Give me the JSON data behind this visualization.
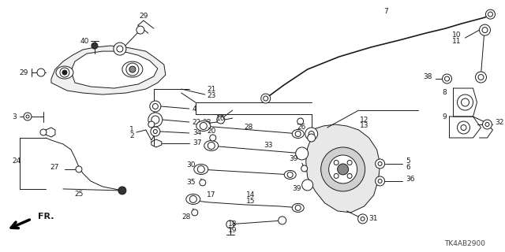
{
  "background_color": "#ffffff",
  "diagram_code": "TK4AB2900",
  "line_color": "#1a1a1a",
  "lw": 0.7,
  "font_size": 6.5
}
